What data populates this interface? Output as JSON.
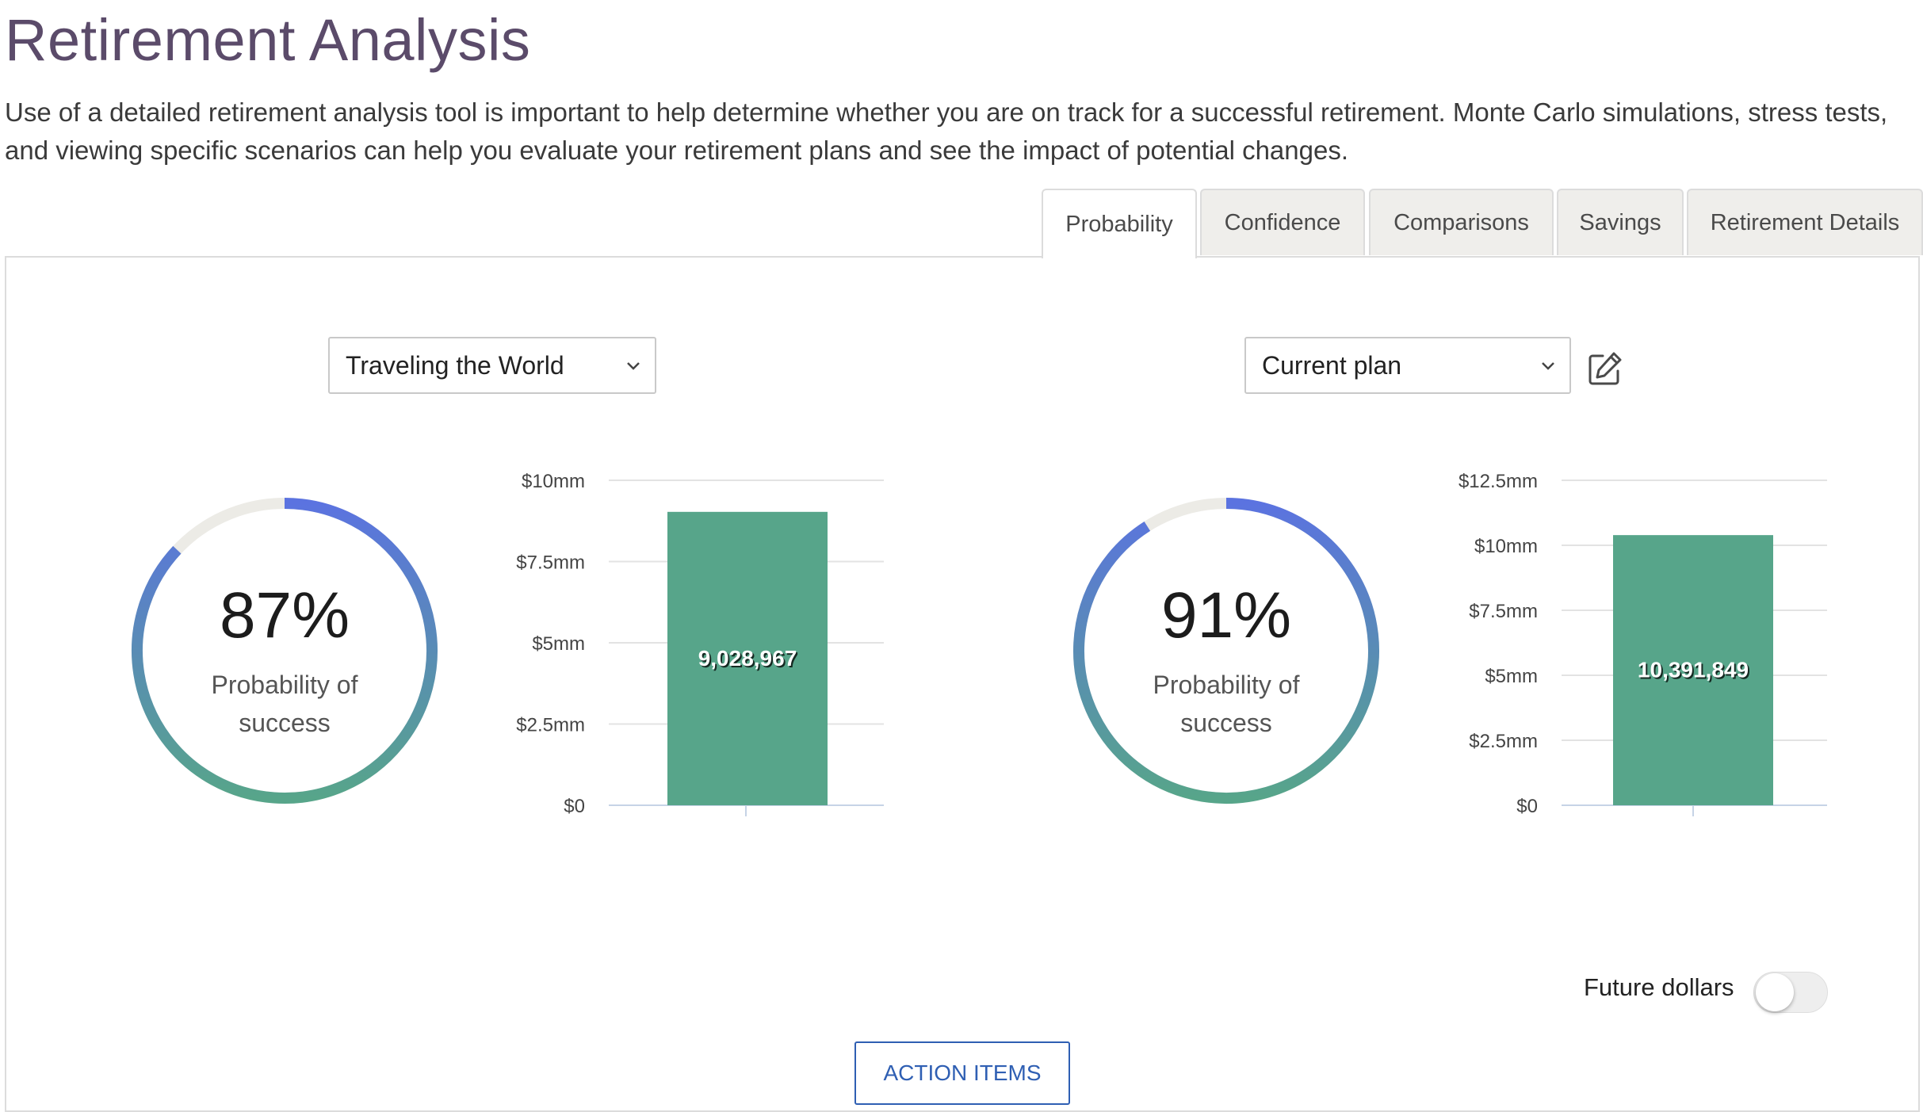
{
  "page": {
    "title": "Retirement Analysis",
    "intro": "Use of a detailed retirement analysis tool is important to help determine whether you are on track for a successful retirement. Monte Carlo simulations, stress tests, and viewing specific scenarios can help you evaluate your retirement plans and see the impact of potential changes."
  },
  "tabs": [
    {
      "label": "Probability",
      "active": true
    },
    {
      "label": "Confidence",
      "active": false
    },
    {
      "label": "Comparisons",
      "active": false
    },
    {
      "label": "Savings",
      "active": false
    },
    {
      "label": "Retirement Details",
      "active": false
    }
  ],
  "left": {
    "scenario_select": "Traveling the World",
    "gauge": {
      "value_text": "87%",
      "value": 0.87,
      "caption_line1": "Probability of",
      "caption_line2": "success"
    }
  },
  "right": {
    "scenario_select": "Current plan",
    "edit_icon": "edit-icon",
    "gauge": {
      "value_text": "91%",
      "value": 0.91,
      "caption_line1": "Probability of",
      "caption_line2": "success"
    }
  },
  "chart_data": [
    {
      "type": "bar",
      "categories": [
        ""
      ],
      "values": [
        9028967
      ],
      "data_labels": [
        "9,028,967"
      ],
      "ylim": [
        0,
        10000000
      ],
      "yticks": [
        0,
        2500000,
        5000000,
        7500000,
        10000000
      ],
      "yticklabels": [
        "$0",
        "$2.5mm",
        "$5mm",
        "$7.5mm",
        "$10mm"
      ],
      "grid": true,
      "bar_color": "#57a58a"
    },
    {
      "type": "bar",
      "categories": [
        ""
      ],
      "values": [
        10391849
      ],
      "data_labels": [
        "10,391,849"
      ],
      "ylim": [
        0,
        12500000
      ],
      "yticks": [
        0,
        2500000,
        5000000,
        7500000,
        10000000,
        12500000
      ],
      "yticklabels": [
        "$0",
        "$2.5mm",
        "$5mm",
        "$7.5mm",
        "$10mm",
        "$12.5mm"
      ],
      "grid": true,
      "bar_color": "#57a58a"
    }
  ],
  "footer": {
    "toggle_label": "Future dollars",
    "toggle_on": false,
    "action_button": "ACTION ITEMS"
  },
  "colors": {
    "title": "#5b4b6a",
    "gauge_start": "#5b73e0",
    "gauge_end": "#57a58a",
    "gauge_track": "#ecebe6",
    "button_accent": "#2f5fb3"
  }
}
